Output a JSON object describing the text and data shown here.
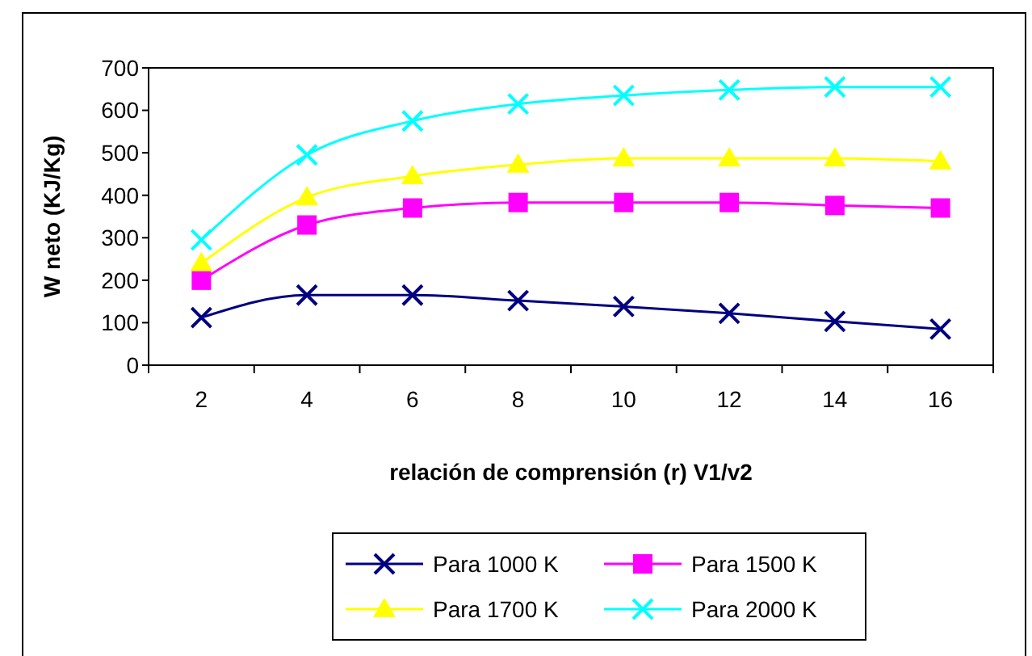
{
  "chart_data": {
    "type": "line",
    "xlabel": "relación de comprensión (r) V1/v2",
    "ylabel": "W neto (KJ/Kg)",
    "categories": [
      "2",
      "4",
      "6",
      "8",
      "10",
      "12",
      "14",
      "16"
    ],
    "ylim": [
      0,
      700
    ],
    "yticks": [
      0,
      100,
      200,
      300,
      400,
      500,
      600,
      700
    ],
    "grid": false,
    "legend": "bottom",
    "series": [
      {
        "name": "Para 1000 K",
        "color": "#000080",
        "marker": "cross",
        "values": [
          112,
          165,
          165,
          152,
          138,
          122,
          103,
          85
        ]
      },
      {
        "name": "Para 1500 K",
        "color": "#ff00ff",
        "marker": "square",
        "values": [
          200,
          330,
          370,
          383,
          383,
          383,
          376,
          370
        ]
      },
      {
        "name": "Para 1700 K",
        "color": "#ffff00",
        "marker": "triangle",
        "values": [
          240,
          395,
          445,
          472,
          487,
          487,
          487,
          480
        ]
      },
      {
        "name": "Para 2000 K",
        "color": "#00ffff",
        "marker": "cross",
        "values": [
          295,
          495,
          575,
          615,
          635,
          648,
          655,
          655
        ]
      }
    ]
  }
}
